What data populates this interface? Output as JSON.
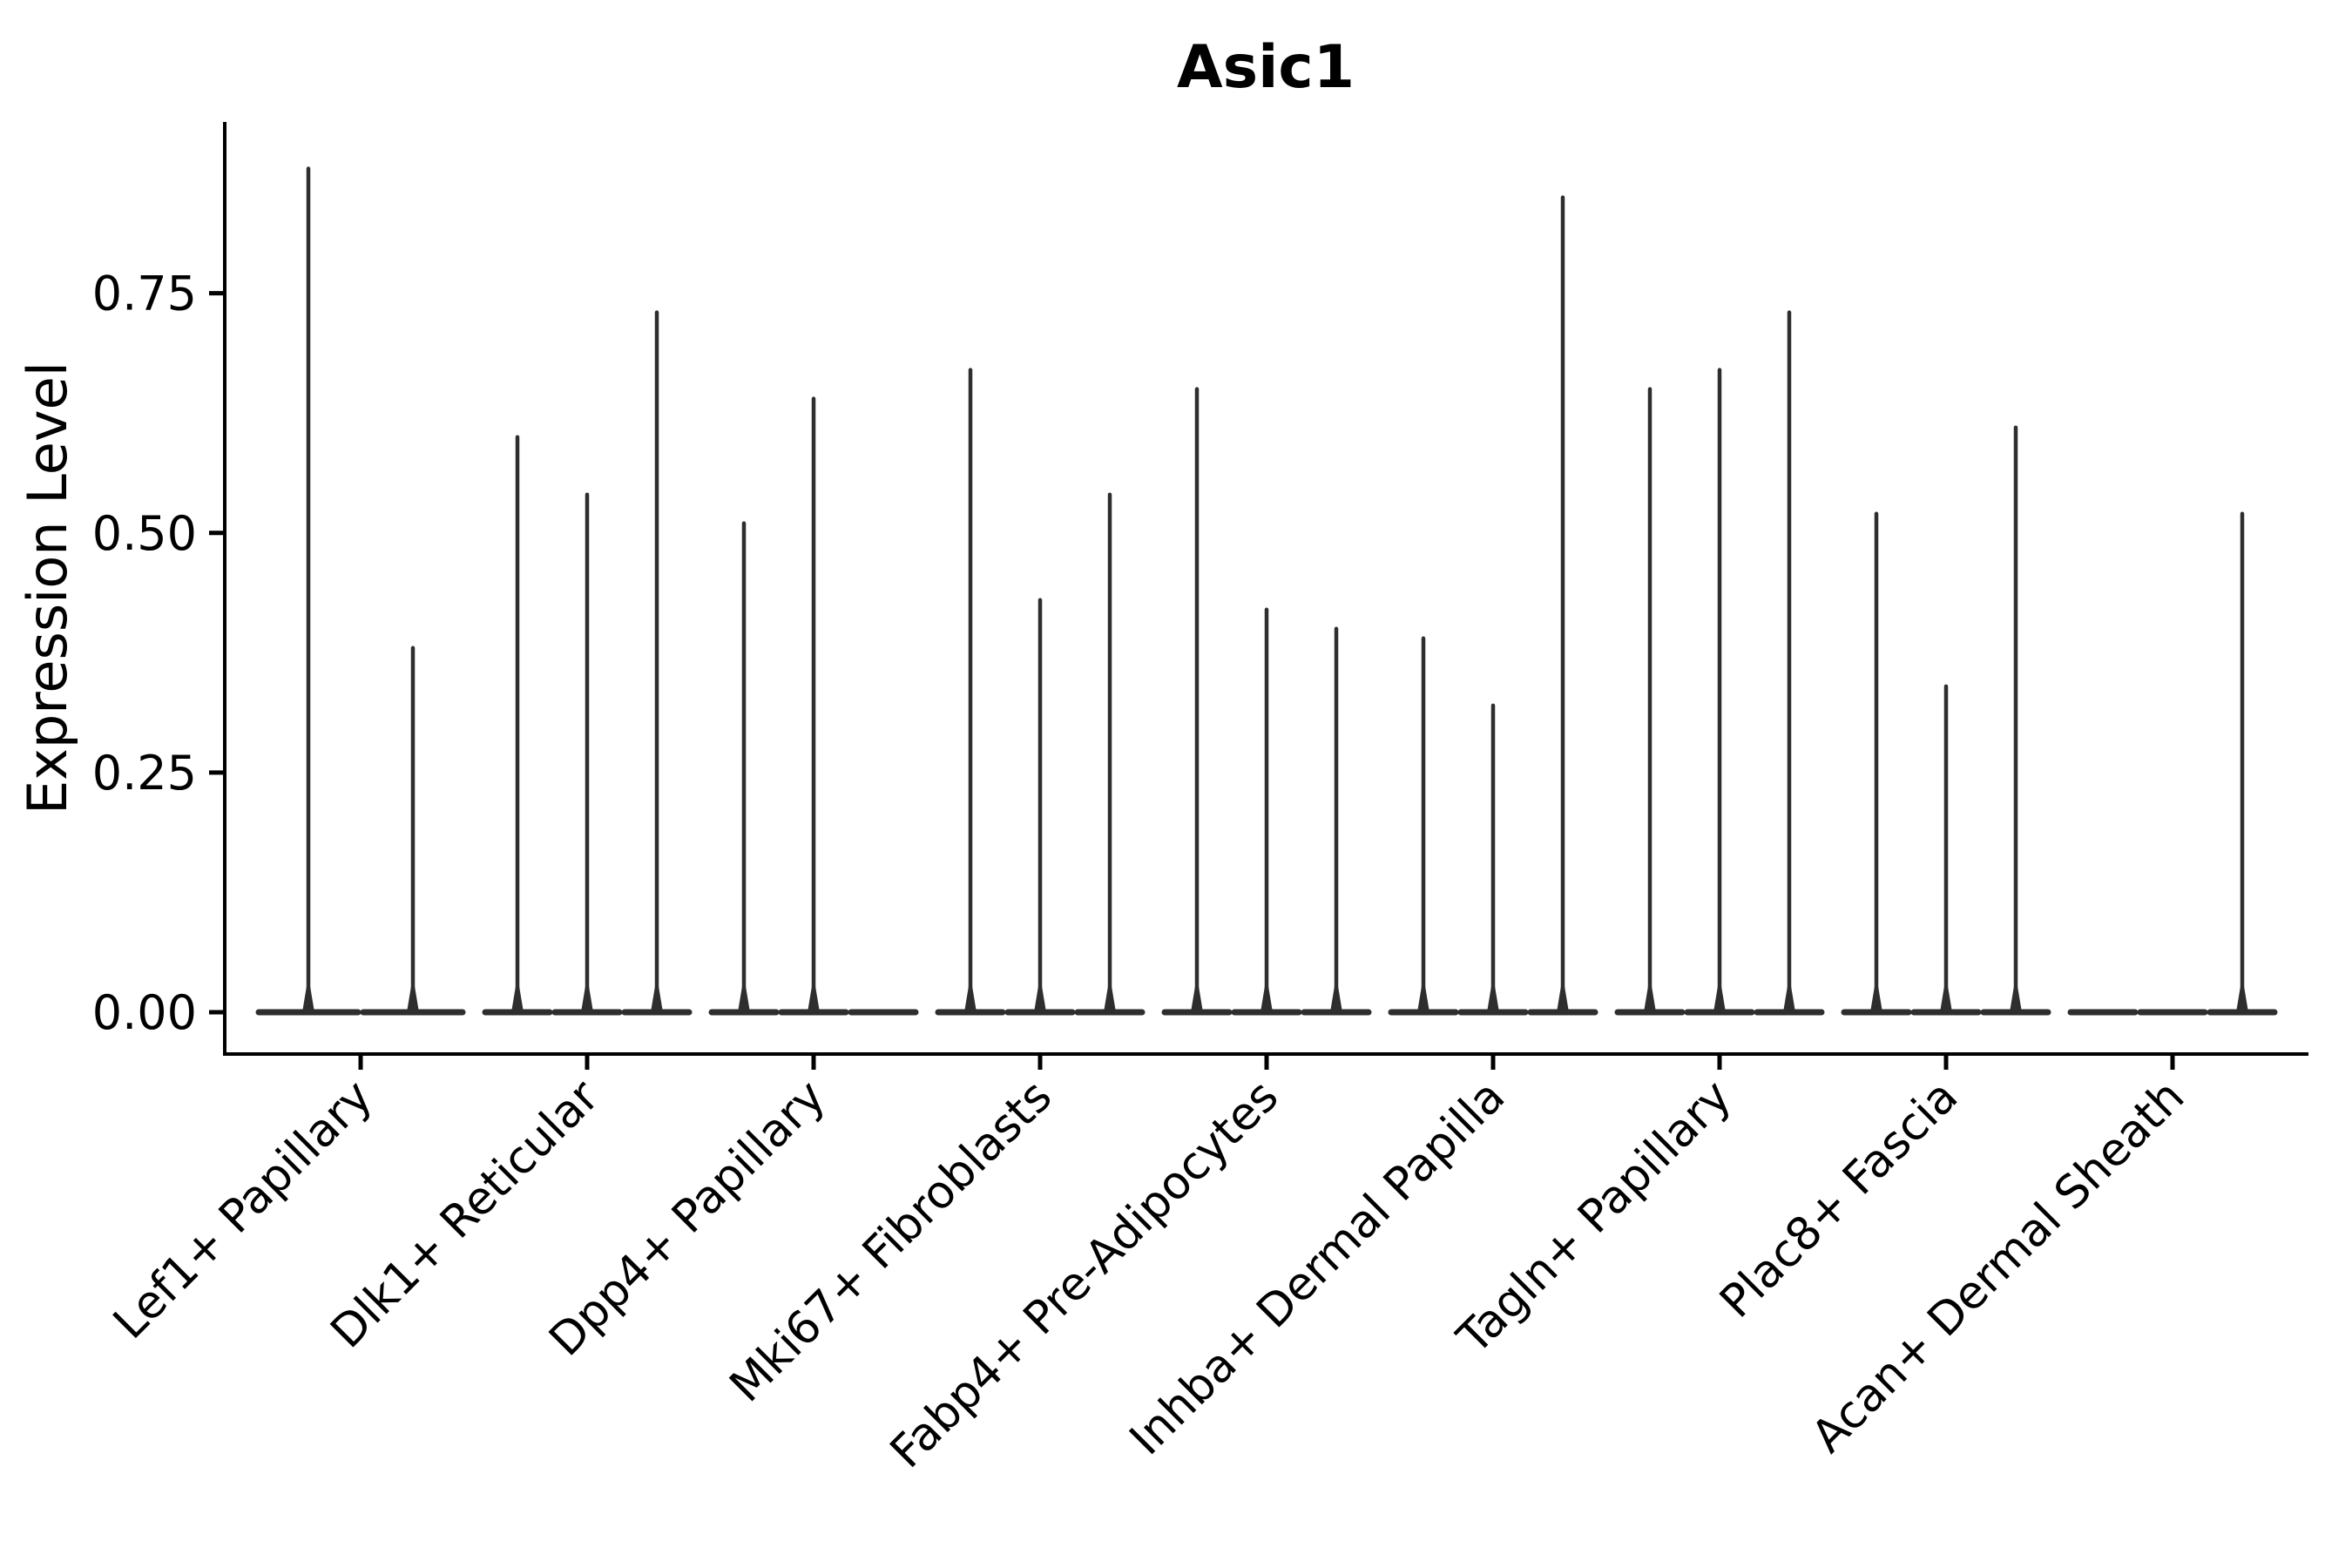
{
  "chart_data": {
    "type": "violin",
    "title": "Asic1",
    "xlabel": "",
    "ylabel": "Expression Level",
    "ytick_values": [
      0.0,
      0.25,
      0.5,
      0.75
    ],
    "ytick_labels": [
      "0.00",
      "0.25",
      "0.50",
      "0.75"
    ],
    "ylim": [
      -0.04,
      0.93
    ],
    "grid": "off",
    "legend": "none",
    "violin_style": "sparse-spike (wide flat base at 0, thin vertical spike to max expression)",
    "colors": {
      "violin_outline": "#2e2e2e",
      "axis": "#000000",
      "background": "#ffffff"
    },
    "categories": [
      "Lef1+ Papillary",
      "Dlk1+ Reticular",
      "Dpp4+ Papillary",
      "Mki67+ Fibroblasts",
      "Fabp4+ Pre-Adipocytes",
      "Inhba+ Dermal Papilla",
      "Tagln+ Papillary",
      "Plac8+ Fascia",
      "Acan+ Dermal Sheath"
    ],
    "groups": [
      {
        "label": "Lef1+ Papillary",
        "violin_max_values": [
          0.88,
          0.38
        ]
      },
      {
        "label": "Dlk1+ Reticular",
        "violin_max_values": [
          0.6,
          0.54,
          0.73
        ]
      },
      {
        "label": "Dpp4+ Papillary",
        "violin_max_values": [
          0.51,
          0.64,
          0.0
        ]
      },
      {
        "label": "Mki67+ Fibroblasts",
        "violin_max_values": [
          0.67,
          0.43,
          0.54
        ]
      },
      {
        "label": "Fabp4+ Pre-Adipocytes",
        "violin_max_values": [
          0.65,
          0.42,
          0.4
        ]
      },
      {
        "label": "Inhba+ Dermal Papilla",
        "violin_max_values": [
          0.39,
          0.32,
          0.85
        ]
      },
      {
        "label": "Tagln+ Papillary",
        "violin_max_values": [
          0.65,
          0.67,
          0.73
        ]
      },
      {
        "label": "Plac8+ Fascia",
        "violin_max_values": [
          0.52,
          0.34,
          0.61
        ]
      },
      {
        "label": "Acan+ Dermal Sheath",
        "violin_max_values": [
          0.0,
          0.0,
          0.52
        ]
      }
    ]
  }
}
